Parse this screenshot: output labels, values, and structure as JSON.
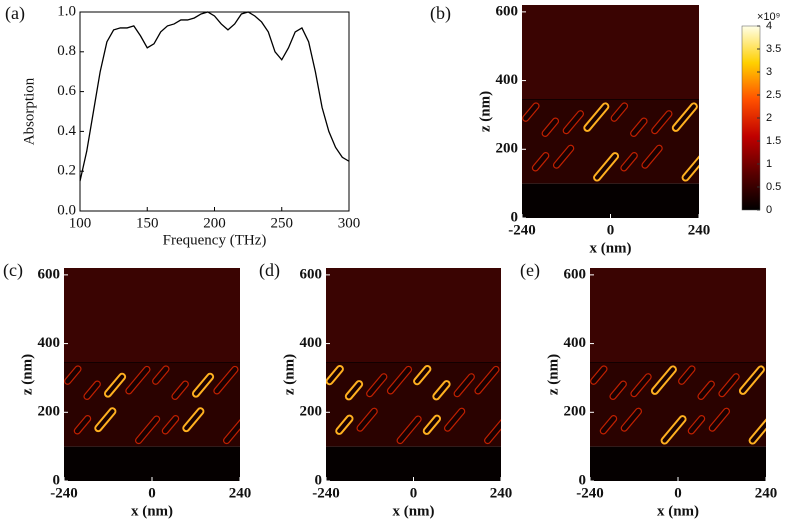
{
  "chart_data": [
    {
      "type": "line",
      "panel_label": "(a)",
      "xlabel": "Frequency (THz)",
      "ylabel": "Absorption",
      "xlim": [
        100,
        300
      ],
      "xticks": [
        100,
        150,
        200,
        250,
        300
      ],
      "ylim": [
        0,
        1
      ],
      "yticks": [
        {
          "value": 0,
          "label": "0.0"
        },
        {
          "value": 0.2,
          "label": "0.2"
        },
        {
          "value": 0.4,
          "label": "0.4"
        },
        {
          "value": 0.6,
          "label": "0.6"
        },
        {
          "value": 0.8,
          "label": "0.8"
        },
        {
          "value": 1,
          "label": "1.0"
        }
      ],
      "color": "#000000",
      "x": [
        100,
        105,
        110,
        115,
        120,
        125,
        130,
        135,
        140,
        145,
        150,
        155,
        160,
        165,
        170,
        175,
        180,
        185,
        190,
        195,
        200,
        205,
        210,
        215,
        220,
        225,
        230,
        235,
        240,
        245,
        250,
        255,
        260,
        265,
        270,
        275,
        280,
        285,
        290,
        295,
        300
      ],
      "values": [
        0.15,
        0.3,
        0.5,
        0.7,
        0.85,
        0.91,
        0.92,
        0.92,
        0.93,
        0.88,
        0.82,
        0.84,
        0.9,
        0.93,
        0.94,
        0.96,
        0.96,
        0.97,
        0.99,
        1.0,
        0.98,
        0.94,
        0.91,
        0.94,
        0.99,
        1.0,
        0.98,
        0.95,
        0.9,
        0.8,
        0.76,
        0.82,
        0.9,
        0.92,
        0.85,
        0.7,
        0.52,
        0.4,
        0.32,
        0.27,
        0.25
      ]
    },
    {
      "type": "heatmap",
      "panel_label": "(b)",
      "xlabel": "x (nm)",
      "ylabel": "z (nm)",
      "xlim": [
        -240,
        240
      ],
      "xticks": [
        -240,
        0,
        240
      ],
      "ylim": [
        0,
        620
      ],
      "yticks": [
        0,
        200,
        400,
        600
      ],
      "clim": [
        0,
        4
      ],
      "cticks": [
        0,
        0.5,
        1,
        1.5,
        2,
        2.5,
        3,
        3.5,
        4
      ],
      "colorbar_multiplier": "×10⁹"
    },
    {
      "type": "heatmap",
      "panel_label": "(c)",
      "xlabel": "x (nm)",
      "ylabel": "z (nm)",
      "xlim": [
        -240,
        240
      ],
      "xticks": [
        -240,
        0,
        240
      ],
      "ylim": [
        0,
        620
      ],
      "yticks": [
        0,
        200,
        400,
        600
      ]
    },
    {
      "type": "heatmap",
      "panel_label": "(d)",
      "xlabel": "x (nm)",
      "ylabel": "z (nm)",
      "xlim": [
        -240,
        240
      ],
      "xticks": [
        -240,
        0,
        240
      ],
      "ylim": [
        0,
        620
      ],
      "yticks": [
        0,
        200,
        400,
        600
      ]
    },
    {
      "type": "heatmap",
      "panel_label": "(e)",
      "xlabel": "x (nm)",
      "ylabel": "z (nm)",
      "xlim": [
        -240,
        240
      ],
      "xticks": [
        -240,
        0,
        240
      ],
      "ylim": [
        0,
        620
      ],
      "yticks": [
        0,
        200,
        400,
        600
      ]
    }
  ]
}
